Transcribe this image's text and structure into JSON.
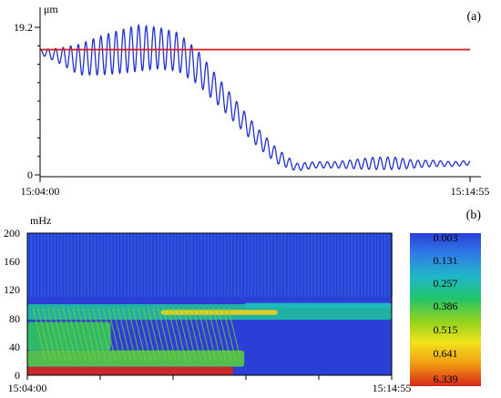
{
  "chart_data": [
    {
      "type": "line",
      "panel_label": "(a)",
      "unit_label": "μm",
      "y_ticks": [
        "19.2",
        "0"
      ],
      "ylim": [
        0,
        19.2
      ],
      "x_ticks": [
        "15:04:00",
        "15:14:55"
      ],
      "xlim": [
        "15:04:00",
        "15:14:55"
      ],
      "grid": false,
      "series": [
        {
          "color": "#1f2fd0",
          "x": [
            "15:04:00",
            "15:04:30",
            "15:05:00",
            "15:05:30",
            "15:06:00",
            "15:06:30",
            "15:07:00",
            "15:07:30",
            "15:08:00",
            "15:08:30",
            "15:09:00",
            "15:09:30",
            "15:10:00",
            "15:10:30",
            "15:11:00",
            "15:11:30",
            "15:12:00",
            "15:12:30",
            "15:13:00",
            "15:13:30",
            "15:14:00",
            "15:14:30",
            "15:14:55"
          ],
          "y": [
            16.0,
            15.5,
            15.0,
            15.5,
            16.0,
            16.5,
            16.5,
            16.0,
            14.0,
            11.0,
            8.0,
            5.0,
            2.5,
            1.0,
            1.3,
            1.3,
            1.4,
            1.5,
            1.5,
            1.4,
            1.5,
            1.4,
            1.6
          ],
          "amplitude": [
            0.3,
            1.0,
            2.0,
            2.5,
            2.8,
            3.0,
            2.7,
            2.5,
            2.2,
            1.8,
            1.5,
            1.2,
            1.0,
            0.5,
            0.4,
            0.4,
            0.6,
            0.8,
            0.8,
            0.5,
            0.4,
            0.3,
            0.3
          ]
        },
        {
          "color": "#e0141e",
          "x": [
            "15:04:00",
            "15:14:55"
          ],
          "y": [
            16.3,
            16.3
          ]
        }
      ]
    },
    {
      "type": "heatmap",
      "panel_label": "(b)",
      "unit_label": "mHz",
      "y_ticks": [
        "200",
        "160",
        "120",
        "80",
        "40",
        "0"
      ],
      "ylim": [
        0,
        200
      ],
      "x_ticks": [
        "15:04:00",
        "15:14:55"
      ],
      "xlim": [
        "15:04:00",
        "15:14:55"
      ],
      "colorbar_ticks": [
        "0.003",
        "0.131",
        "0.257",
        "0.386",
        "0.515",
        "0.641",
        "6.339"
      ],
      "colorscale": [
        "#2b3fd6",
        "#2f7fe6",
        "#1fb8c8",
        "#22c46a",
        "#8ed21e",
        "#f2e21a",
        "#f29a14",
        "#d8261a"
      ],
      "features": [
        {
          "t0": "15:04:00",
          "t1": "15:10:10",
          "f0": 0,
          "f1": 12,
          "level": 1.0
        },
        {
          "t0": "15:04:00",
          "t1": "15:10:30",
          "f0": 12,
          "f1": 35,
          "level": 0.5
        },
        {
          "t0": "15:04:00",
          "t1": "15:06:30",
          "f0": 35,
          "f1": 75,
          "level": 0.45
        },
        {
          "t0": "15:04:00",
          "t1": "15:14:55",
          "f0": 78,
          "f1": 100,
          "level": 0.35
        },
        {
          "t0": "15:08:00",
          "t1": "15:11:30",
          "f0": 85,
          "f1": 92,
          "level": 0.75
        },
        {
          "t0": "15:10:30",
          "t1": "15:14:55",
          "f0": 94,
          "f1": 102,
          "level": 0.3
        }
      ]
    }
  ]
}
